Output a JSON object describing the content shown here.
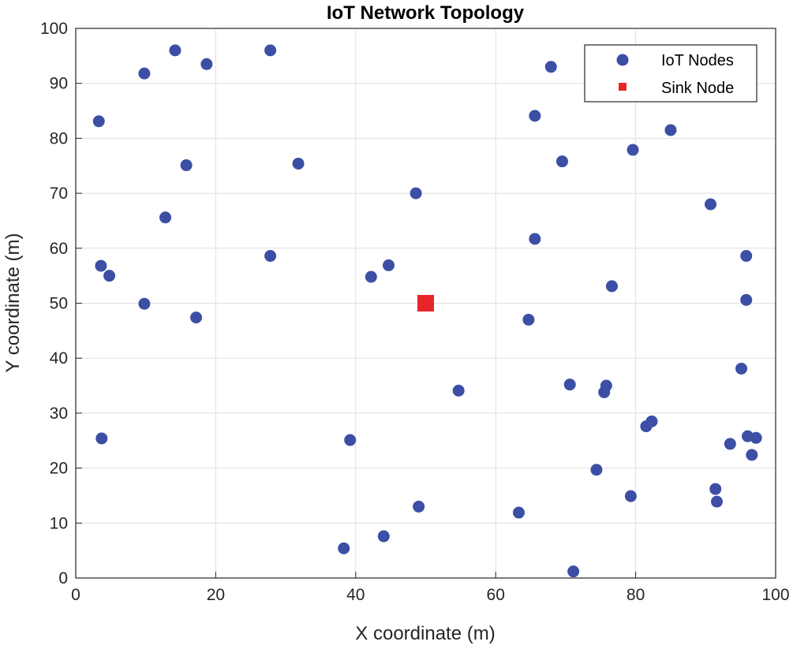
{
  "chart_data": {
    "type": "scatter",
    "title": "IoT Network Topology",
    "xlabel": "X coordinate (m)",
    "ylabel": "Y coordinate (m)",
    "xlim": [
      0,
      100
    ],
    "ylim": [
      0,
      100
    ],
    "xticks": [
      "0",
      "20",
      "40",
      "60",
      "80",
      "100"
    ],
    "yticks": [
      "0",
      "10",
      "20",
      "30",
      "40",
      "50",
      "60",
      "70",
      "80",
      "90",
      "100"
    ],
    "grid": true,
    "legend_position": "top-right",
    "series": [
      {
        "name": "IoT Nodes",
        "marker": "circle",
        "color": "#3C4FA5",
        "points": [
          [
            14.2,
            96.0
          ],
          [
            27.8,
            96.0
          ],
          [
            9.8,
            91.8
          ],
          [
            18.7,
            93.5
          ],
          [
            3.3,
            83.1
          ],
          [
            15.8,
            75.1
          ],
          [
            31.8,
            75.4
          ],
          [
            12.8,
            65.6
          ],
          [
            27.8,
            58.6
          ],
          [
            3.6,
            56.8
          ],
          [
            4.8,
            55.0
          ],
          [
            9.8,
            49.9
          ],
          [
            17.2,
            47.4
          ],
          [
            3.7,
            25.4
          ],
          [
            39.2,
            25.1
          ],
          [
            38.3,
            5.4
          ],
          [
            44.0,
            7.6
          ],
          [
            49.0,
            13.0
          ],
          [
            42.2,
            54.8
          ],
          [
            44.7,
            56.9
          ],
          [
            48.6,
            70.0
          ],
          [
            54.7,
            34.1
          ],
          [
            63.3,
            11.9
          ],
          [
            64.7,
            47.0
          ],
          [
            65.6,
            61.7
          ],
          [
            65.6,
            84.1
          ],
          [
            67.9,
            93.0
          ],
          [
            69.5,
            75.8
          ],
          [
            70.6,
            35.2
          ],
          [
            71.1,
            1.2
          ],
          [
            74.4,
            19.7
          ],
          [
            75.5,
            33.8
          ],
          [
            75.8,
            35.0
          ],
          [
            76.6,
            53.1
          ],
          [
            79.3,
            14.9
          ],
          [
            79.6,
            77.9
          ],
          [
            81.5,
            27.6
          ],
          [
            82.3,
            28.5
          ],
          [
            85.0,
            81.5
          ],
          [
            90.7,
            68.0
          ],
          [
            91.4,
            16.2
          ],
          [
            91.6,
            13.9
          ],
          [
            93.5,
            24.4
          ],
          [
            95.1,
            38.1
          ],
          [
            95.8,
            58.6
          ],
          [
            95.8,
            50.6
          ],
          [
            96.0,
            25.8
          ],
          [
            96.6,
            22.4
          ],
          [
            97.2,
            25.5
          ]
        ]
      },
      {
        "name": "Sink Node",
        "marker": "square",
        "color": "#E8262A",
        "points": [
          [
            50,
            50
          ]
        ]
      }
    ]
  }
}
